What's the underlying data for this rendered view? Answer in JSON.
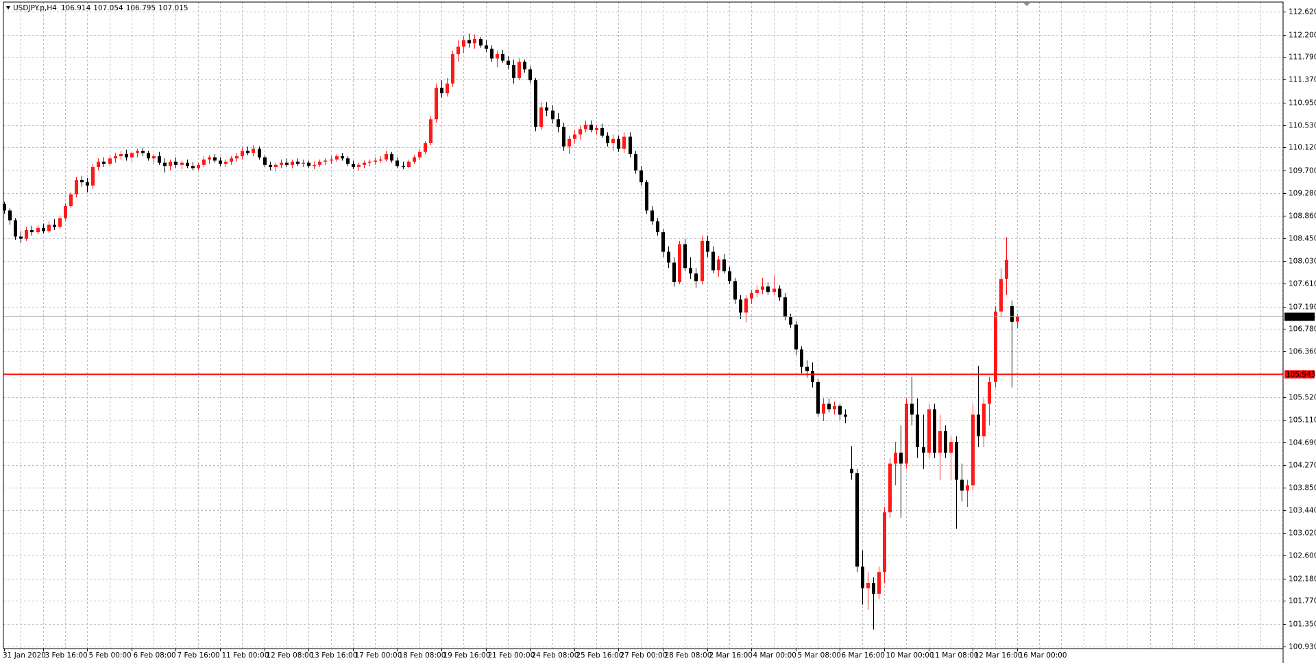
{
  "chart_data": {
    "type": "candlestick",
    "symbol": "USDJPY.p,H4",
    "up_color": "#ff1a1a",
    "down_color": "#000000",
    "grid": true,
    "bid_line": {
      "value": 107.015,
      "color": "#a6aab3"
    },
    "level_line": {
      "value": 105.943,
      "color": "#ff0000"
    },
    "ylim": [
      100.89,
      112.8
    ],
    "yticks": [
      {
        "value": 112.62,
        "label": "112.620"
      },
      {
        "value": 112.2,
        "label": "112.200"
      },
      {
        "value": 111.79,
        "label": "111.790"
      },
      {
        "value": 111.37,
        "label": "111.370"
      },
      {
        "value": 110.95,
        "label": "110.950"
      },
      {
        "value": 110.53,
        "label": "110.530"
      },
      {
        "value": 110.12,
        "label": "110.120"
      },
      {
        "value": 109.7,
        "label": "109.700"
      },
      {
        "value": 109.28,
        "label": "109.280"
      },
      {
        "value": 108.86,
        "label": "108.860"
      },
      {
        "value": 108.45,
        "label": "108.450"
      },
      {
        "value": 108.03,
        "label": "108.030"
      },
      {
        "value": 107.61,
        "label": "107.610"
      },
      {
        "value": 107.19,
        "label": "107.190"
      },
      {
        "value": 106.78,
        "label": "106.780"
      },
      {
        "value": 106.36,
        "label": "106.360"
      },
      {
        "value": 105.52,
        "label": "105.520"
      },
      {
        "value": 105.11,
        "label": "105.110"
      },
      {
        "value": 104.69,
        "label": "104.690"
      },
      {
        "value": 104.27,
        "label": "104.270"
      },
      {
        "value": 103.85,
        "label": "103.850"
      },
      {
        "value": 103.44,
        "label": "103.440"
      },
      {
        "value": 103.02,
        "label": "103.020"
      },
      {
        "value": 102.6,
        "label": "102.600"
      },
      {
        "value": 102.18,
        "label": "102.180"
      },
      {
        "value": 101.77,
        "label": "101.770"
      },
      {
        "value": 101.35,
        "label": "101.350"
      },
      {
        "value": 100.93,
        "label": "100.930"
      }
    ],
    "categories": [
      "31 Jan 2020",
      "3 Feb 16:00",
      "5 Feb 00:00",
      "6 Feb 08:00",
      "7 Feb 16:00",
      "11 Feb 00:00",
      "12 Feb 08:00",
      "13 Feb 16:00",
      "17 Feb 00:00",
      "18 Feb 08:00",
      "19 Feb 16:00",
      "21 Feb 00:00",
      "24 Feb 08:00",
      "25 Feb 16:00",
      "27 Feb 00:00",
      "28 Feb 08:00",
      "2 Mar 16:00",
      "4 Mar 00:00",
      "5 Mar 08:00",
      "6 Mar 16:00",
      "10 Mar 00:00",
      "11 Mar 08:00",
      "12 Mar 16:00",
      "16 Mar 00:00"
    ],
    "candles": [
      [
        109.08,
        109.12,
        108.9,
        108.96
      ],
      [
        108.96,
        109.0,
        108.7,
        108.78
      ],
      [
        108.78,
        108.82,
        108.42,
        108.48
      ],
      [
        108.48,
        108.58,
        108.36,
        108.44
      ],
      [
        108.44,
        108.66,
        108.4,
        108.6
      ],
      [
        108.6,
        108.68,
        108.5,
        108.56
      ],
      [
        108.56,
        108.7,
        108.52,
        108.64
      ],
      [
        108.64,
        108.72,
        108.54,
        108.58
      ],
      [
        108.58,
        108.76,
        108.55,
        108.7
      ],
      [
        108.7,
        108.8,
        108.6,
        108.66
      ],
      [
        108.66,
        108.86,
        108.62,
        108.82
      ],
      [
        108.82,
        109.1,
        108.78,
        109.04
      ],
      [
        109.04,
        109.3,
        109.0,
        109.26
      ],
      [
        109.26,
        109.58,
        109.2,
        109.52
      ],
      [
        109.52,
        109.6,
        109.4,
        109.48
      ],
      [
        109.48,
        109.56,
        109.3,
        109.42
      ],
      [
        109.42,
        109.82,
        109.36,
        109.76
      ],
      [
        109.76,
        109.92,
        109.7,
        109.86
      ],
      [
        109.86,
        109.94,
        109.76,
        109.82
      ],
      [
        109.82,
        109.98,
        109.78,
        109.92
      ],
      [
        109.92,
        110.02,
        109.84,
        109.96
      ],
      [
        109.96,
        110.06,
        109.9,
        110.0
      ],
      [
        110.0,
        110.08,
        109.88,
        109.94
      ],
      [
        109.94,
        110.04,
        109.86,
        110.02
      ],
      [
        110.02,
        110.1,
        109.94,
        110.06
      ],
      [
        110.06,
        110.12,
        109.96,
        110.02
      ],
      [
        110.02,
        110.06,
        109.88,
        109.92
      ],
      [
        109.92,
        110.0,
        109.82,
        109.96
      ],
      [
        109.96,
        110.04,
        109.8,
        109.84
      ],
      [
        109.84,
        109.92,
        109.66,
        109.78
      ],
      [
        109.78,
        109.9,
        109.7,
        109.86
      ],
      [
        109.86,
        109.94,
        109.74,
        109.8
      ],
      [
        109.8,
        109.88,
        109.72,
        109.84
      ],
      [
        109.84,
        109.9,
        109.74,
        109.78
      ],
      [
        109.78,
        109.86,
        109.7,
        109.74
      ],
      [
        109.74,
        109.84,
        109.7,
        109.8
      ],
      [
        109.8,
        109.96,
        109.76,
        109.9
      ],
      [
        109.9,
        109.98,
        109.82,
        109.94
      ],
      [
        109.94,
        110.0,
        109.84,
        109.88
      ],
      [
        109.88,
        109.94,
        109.78,
        109.82
      ],
      [
        109.82,
        109.9,
        109.76,
        109.86
      ],
      [
        109.86,
        109.96,
        109.8,
        109.92
      ],
      [
        109.92,
        110.02,
        109.86,
        109.96
      ],
      [
        109.96,
        110.12,
        109.9,
        110.06
      ],
      [
        110.06,
        110.14,
        109.98,
        110.02
      ],
      [
        110.02,
        110.16,
        109.96,
        110.1
      ],
      [
        110.1,
        110.14,
        109.9,
        109.94
      ],
      [
        109.94,
        109.98,
        109.76,
        109.8
      ],
      [
        109.8,
        109.86,
        109.7,
        109.76
      ],
      [
        109.76,
        109.84,
        109.68,
        109.8
      ],
      [
        109.8,
        109.9,
        109.74,
        109.84
      ],
      [
        109.84,
        109.92,
        109.76,
        109.8
      ],
      [
        109.8,
        109.9,
        109.74,
        109.86
      ],
      [
        109.86,
        109.92,
        109.78,
        109.82
      ],
      [
        109.82,
        109.9,
        109.76,
        109.84
      ],
      [
        109.84,
        109.88,
        109.74,
        109.78
      ],
      [
        109.78,
        109.86,
        109.72,
        109.8
      ],
      [
        109.8,
        109.9,
        109.76,
        109.86
      ],
      [
        109.86,
        109.92,
        109.8,
        109.88
      ],
      [
        109.88,
        109.96,
        109.82,
        109.9
      ],
      [
        109.9,
        110.0,
        109.86,
        109.96
      ],
      [
        109.96,
        110.02,
        109.88,
        109.92
      ],
      [
        109.92,
        109.96,
        109.78,
        109.82
      ],
      [
        109.82,
        109.88,
        109.72,
        109.76
      ],
      [
        109.76,
        109.84,
        109.7,
        109.8
      ],
      [
        109.8,
        109.88,
        109.74,
        109.84
      ],
      [
        109.84,
        109.9,
        109.78,
        109.86
      ],
      [
        109.86,
        109.94,
        109.8,
        109.88
      ],
      [
        109.88,
        109.96,
        109.84,
        109.9
      ],
      [
        109.9,
        110.06,
        109.86,
        110.0
      ],
      [
        110.0,
        110.04,
        109.84,
        109.88
      ],
      [
        109.88,
        109.94,
        109.74,
        109.78
      ],
      [
        109.78,
        109.86,
        109.72,
        109.76
      ],
      [
        109.76,
        109.9,
        109.74,
        109.86
      ],
      [
        109.86,
        109.98,
        109.82,
        109.94
      ],
      [
        109.94,
        110.1,
        109.9,
        110.04
      ],
      [
        110.04,
        110.24,
        110.0,
        110.2
      ],
      [
        110.2,
        110.7,
        110.16,
        110.64
      ],
      [
        110.64,
        111.3,
        110.58,
        111.22
      ],
      [
        111.22,
        111.36,
        111.04,
        111.12
      ],
      [
        111.12,
        111.4,
        111.06,
        111.3
      ],
      [
        111.3,
        111.9,
        111.24,
        111.84
      ],
      [
        111.84,
        112.1,
        111.7,
        111.98
      ],
      [
        111.98,
        112.18,
        111.86,
        112.1
      ],
      [
        112.1,
        112.22,
        111.96,
        112.04
      ],
      [
        112.04,
        112.2,
        111.94,
        112.12
      ],
      [
        112.12,
        112.16,
        111.96,
        112.0
      ],
      [
        112.0,
        112.1,
        111.88,
        111.94
      ],
      [
        111.94,
        112.0,
        111.7,
        111.76
      ],
      [
        111.76,
        111.9,
        111.6,
        111.84
      ],
      [
        111.84,
        111.92,
        111.68,
        111.72
      ],
      [
        111.72,
        111.8,
        111.56,
        111.64
      ],
      [
        111.64,
        111.74,
        111.3,
        111.4
      ],
      [
        111.4,
        111.76,
        111.36,
        111.7
      ],
      [
        111.7,
        111.74,
        111.5,
        111.56
      ],
      [
        111.56,
        111.62,
        111.3,
        111.36
      ],
      [
        111.36,
        111.4,
        110.42,
        110.5
      ],
      [
        110.5,
        110.96,
        110.44,
        110.86
      ],
      [
        110.86,
        110.96,
        110.7,
        110.8
      ],
      [
        110.8,
        110.9,
        110.56,
        110.64
      ],
      [
        110.64,
        110.76,
        110.4,
        110.5
      ],
      [
        110.5,
        110.58,
        110.06,
        110.14
      ],
      [
        110.14,
        110.34,
        110.0,
        110.28
      ],
      [
        110.28,
        110.44,
        110.2,
        110.36
      ],
      [
        110.36,
        110.52,
        110.26,
        110.46
      ],
      [
        110.46,
        110.62,
        110.4,
        110.54
      ],
      [
        110.54,
        110.62,
        110.4,
        110.44
      ],
      [
        110.44,
        110.54,
        110.36,
        110.48
      ],
      [
        110.48,
        110.56,
        110.3,
        110.34
      ],
      [
        110.34,
        110.4,
        110.14,
        110.2
      ],
      [
        110.2,
        110.36,
        110.06,
        110.28
      ],
      [
        110.28,
        110.34,
        110.04,
        110.1
      ],
      [
        110.1,
        110.4,
        110.02,
        110.32
      ],
      [
        110.32,
        110.4,
        109.94,
        110.0
      ],
      [
        110.0,
        110.06,
        109.64,
        109.7
      ],
      [
        109.7,
        109.78,
        109.42,
        109.48
      ],
      [
        109.48,
        109.52,
        108.9,
        108.96
      ],
      [
        108.96,
        109.04,
        108.7,
        108.76
      ],
      [
        108.76,
        108.82,
        108.5,
        108.56
      ],
      [
        108.56,
        108.62,
        108.1,
        108.2
      ],
      [
        108.2,
        108.3,
        107.9,
        108.0
      ],
      [
        108.0,
        108.1,
        107.56,
        107.64
      ],
      [
        107.64,
        108.4,
        107.6,
        108.34
      ],
      [
        108.34,
        108.44,
        107.84,
        107.9
      ],
      [
        107.9,
        108.1,
        107.7,
        107.8
      ],
      [
        107.8,
        107.9,
        107.54,
        107.66
      ],
      [
        107.66,
        108.5,
        107.6,
        108.4
      ],
      [
        108.4,
        108.5,
        108.1,
        108.2
      ],
      [
        108.2,
        108.3,
        107.8,
        107.86
      ],
      [
        107.86,
        108.12,
        107.74,
        108.06
      ],
      [
        108.06,
        108.16,
        107.8,
        107.84
      ],
      [
        107.84,
        107.92,
        107.6,
        107.66
      ],
      [
        107.66,
        107.72,
        107.24,
        107.32
      ],
      [
        107.32,
        107.4,
        106.96,
        107.08
      ],
      [
        107.08,
        107.4,
        106.9,
        107.34
      ],
      [
        107.34,
        107.5,
        107.24,
        107.44
      ],
      [
        107.44,
        107.58,
        107.36,
        107.5
      ],
      [
        107.5,
        107.72,
        107.42,
        107.56
      ],
      [
        107.56,
        107.64,
        107.4,
        107.46
      ],
      [
        107.46,
        107.76,
        107.4,
        107.52
      ],
      [
        107.52,
        107.58,
        107.3,
        107.36
      ],
      [
        107.36,
        107.44,
        106.94,
        107.0
      ],
      [
        107.0,
        107.06,
        106.8,
        106.86
      ],
      [
        106.86,
        106.92,
        106.3,
        106.4
      ],
      [
        106.4,
        106.46,
        105.96,
        106.08
      ],
      [
        106.08,
        106.2,
        105.88,
        106.0
      ],
      [
        106.0,
        106.16,
        105.7,
        105.8
      ],
      [
        105.8,
        105.86,
        105.16,
        105.22
      ],
      [
        105.22,
        105.5,
        105.08,
        105.4
      ],
      [
        105.4,
        105.5,
        105.24,
        105.3
      ],
      [
        105.3,
        105.44,
        105.2,
        105.36
      ],
      [
        105.36,
        105.4,
        105.1,
        105.2
      ],
      [
        105.2,
        105.3,
        105.04,
        105.16
      ],
      [
        104.2,
        104.62,
        104.0,
        104.12
      ],
      [
        104.12,
        104.2,
        102.3,
        102.4
      ],
      [
        102.4,
        102.7,
        101.7,
        102.0
      ],
      [
        102.0,
        102.3,
        101.6,
        102.1
      ],
      [
        102.1,
        102.2,
        101.24,
        101.9
      ],
      [
        101.9,
        102.4,
        101.8,
        102.3
      ],
      [
        102.3,
        103.5,
        102.1,
        103.4
      ],
      [
        103.4,
        104.4,
        103.3,
        104.3
      ],
      [
        104.3,
        104.7,
        103.9,
        104.5
      ],
      [
        104.5,
        105.0,
        103.3,
        104.3
      ],
      [
        104.3,
        105.5,
        104.2,
        105.4
      ],
      [
        105.4,
        105.9,
        105.0,
        105.2
      ],
      [
        105.2,
        105.5,
        104.4,
        104.6
      ],
      [
        104.6,
        105.2,
        104.2,
        104.5
      ],
      [
        104.5,
        105.4,
        104.4,
        105.3
      ],
      [
        105.3,
        105.4,
        104.4,
        104.5
      ],
      [
        104.5,
        105.2,
        104.0,
        104.9
      ],
      [
        104.9,
        105.0,
        104.4,
        104.5
      ],
      [
        104.5,
        104.8,
        104.0,
        104.7
      ],
      [
        104.7,
        104.8,
        103.1,
        104.0
      ],
      [
        104.0,
        104.3,
        103.6,
        103.8
      ],
      [
        103.8,
        104.0,
        103.5,
        103.9
      ],
      [
        103.9,
        105.4,
        103.8,
        105.2
      ],
      [
        105.2,
        106.1,
        104.6,
        104.8
      ],
      [
        104.8,
        105.5,
        104.6,
        105.4
      ],
      [
        105.4,
        105.9,
        105.0,
        105.8
      ],
      [
        105.8,
        107.2,
        105.7,
        107.1
      ],
      [
        107.1,
        107.9,
        107.0,
        107.7
      ],
      [
        107.7,
        108.47,
        107.4,
        108.05
      ],
      [
        107.2,
        107.3,
        105.7,
        106.91
      ],
      [
        106.914,
        107.054,
        106.795,
        107.015
      ]
    ]
  }
}
